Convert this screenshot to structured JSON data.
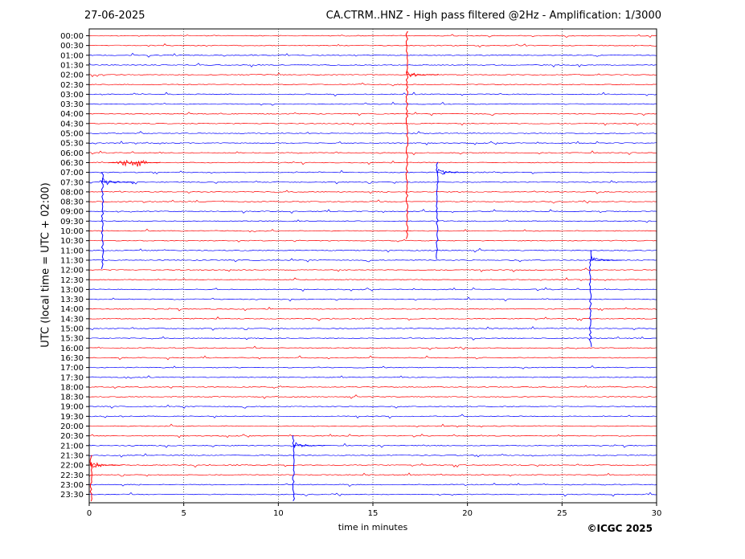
{
  "header": {
    "date": "27-06-2025",
    "title": "CA.CTRM..HNZ - High pass filtered @2Hz - Amplification: 1/3000"
  },
  "copyright": "©ICGC 2025",
  "colors": {
    "red": "#ff0000",
    "blue": "#0000ff",
    "grid": "#000000"
  },
  "chart_data": {
    "type": "line",
    "title": "CA.CTRM..HNZ - High pass filtered @2Hz - Amplification: 1/3000",
    "xlabel": "time in minutes",
    "ylabel": "UTC (local time = UTC + 02:00)",
    "xlim": [
      0,
      30
    ],
    "x_ticks": [
      "0",
      "5",
      "10",
      "15",
      "20",
      "25",
      "30"
    ],
    "vertical_grid": "dotted at 5, 10, 15, 20, 25",
    "trace_colors": "alternating red / blue per hour",
    "y_ticks": [
      "00:00",
      "00:30",
      "01:00",
      "01:30",
      "02:00",
      "02:30",
      "03:00",
      "03:30",
      "04:00",
      "04:30",
      "05:00",
      "05:30",
      "06:00",
      "06:30",
      "07:00",
      "07:30",
      "08:00",
      "08:30",
      "09:00",
      "09:30",
      "10:00",
      "10:30",
      "11:00",
      "11:30",
      "12:00",
      "12:30",
      "13:00",
      "13:30",
      "14:00",
      "14:30",
      "15:00",
      "15:30",
      "16:00",
      "16:30",
      "17:00",
      "17:30",
      "18:00",
      "18:30",
      "19:00",
      "19:30",
      "20:00",
      "20:30",
      "21:00",
      "21:30",
      "22:00",
      "22:30",
      "23:00",
      "23:30"
    ],
    "events": [
      {
        "trace": "02:00",
        "minute": 16.8,
        "note": "large spike (06:00 arrival)"
      },
      {
        "trace": "06:30",
        "minute": 2.3,
        "note": "burst"
      },
      {
        "trace": "07:00",
        "minute": 18.4,
        "note": "large spike"
      },
      {
        "trace": "07:30",
        "minute": 0.7,
        "note": "large spike"
      },
      {
        "trace": "11:30",
        "minute": 26.5,
        "note": "large spike"
      },
      {
        "trace": "21:00",
        "minute": 10.8,
        "note": "large spike"
      },
      {
        "trace": "22:00",
        "minute": 0.1,
        "note": "large spike"
      }
    ]
  }
}
